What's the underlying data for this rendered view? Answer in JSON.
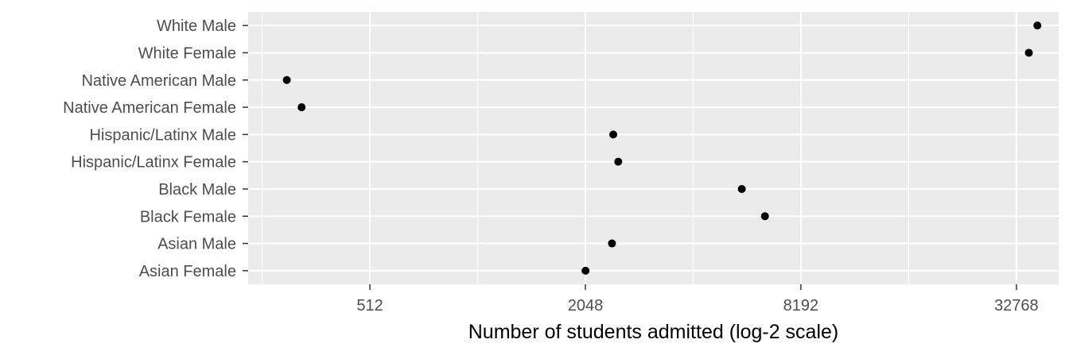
{
  "chart_data": {
    "type": "scatter",
    "title": "",
    "xlabel": "Number of students admitted (log-2 scale)",
    "ylabel": "",
    "x_scale": "log2",
    "xlim": [
      234,
      43000
    ],
    "x_ticks": [
      512,
      2048,
      8192,
      32768
    ],
    "x_tick_labels": [
      "512",
      "2048",
      "8192",
      "32768"
    ],
    "grid": true,
    "background": "#ebebeb",
    "point_color": "#000000",
    "categories": [
      "White Male",
      "White Female",
      "Native American Male",
      "Native American Female",
      "Hispanic/Latinx Male",
      "Hispanic/Latinx Female",
      "Black Male",
      "Black Female",
      "Asian Male",
      "Asian Female"
    ],
    "values": [
      37500,
      35500,
      300,
      330,
      2450,
      2530,
      5600,
      6500,
      2430,
      2050
    ]
  }
}
